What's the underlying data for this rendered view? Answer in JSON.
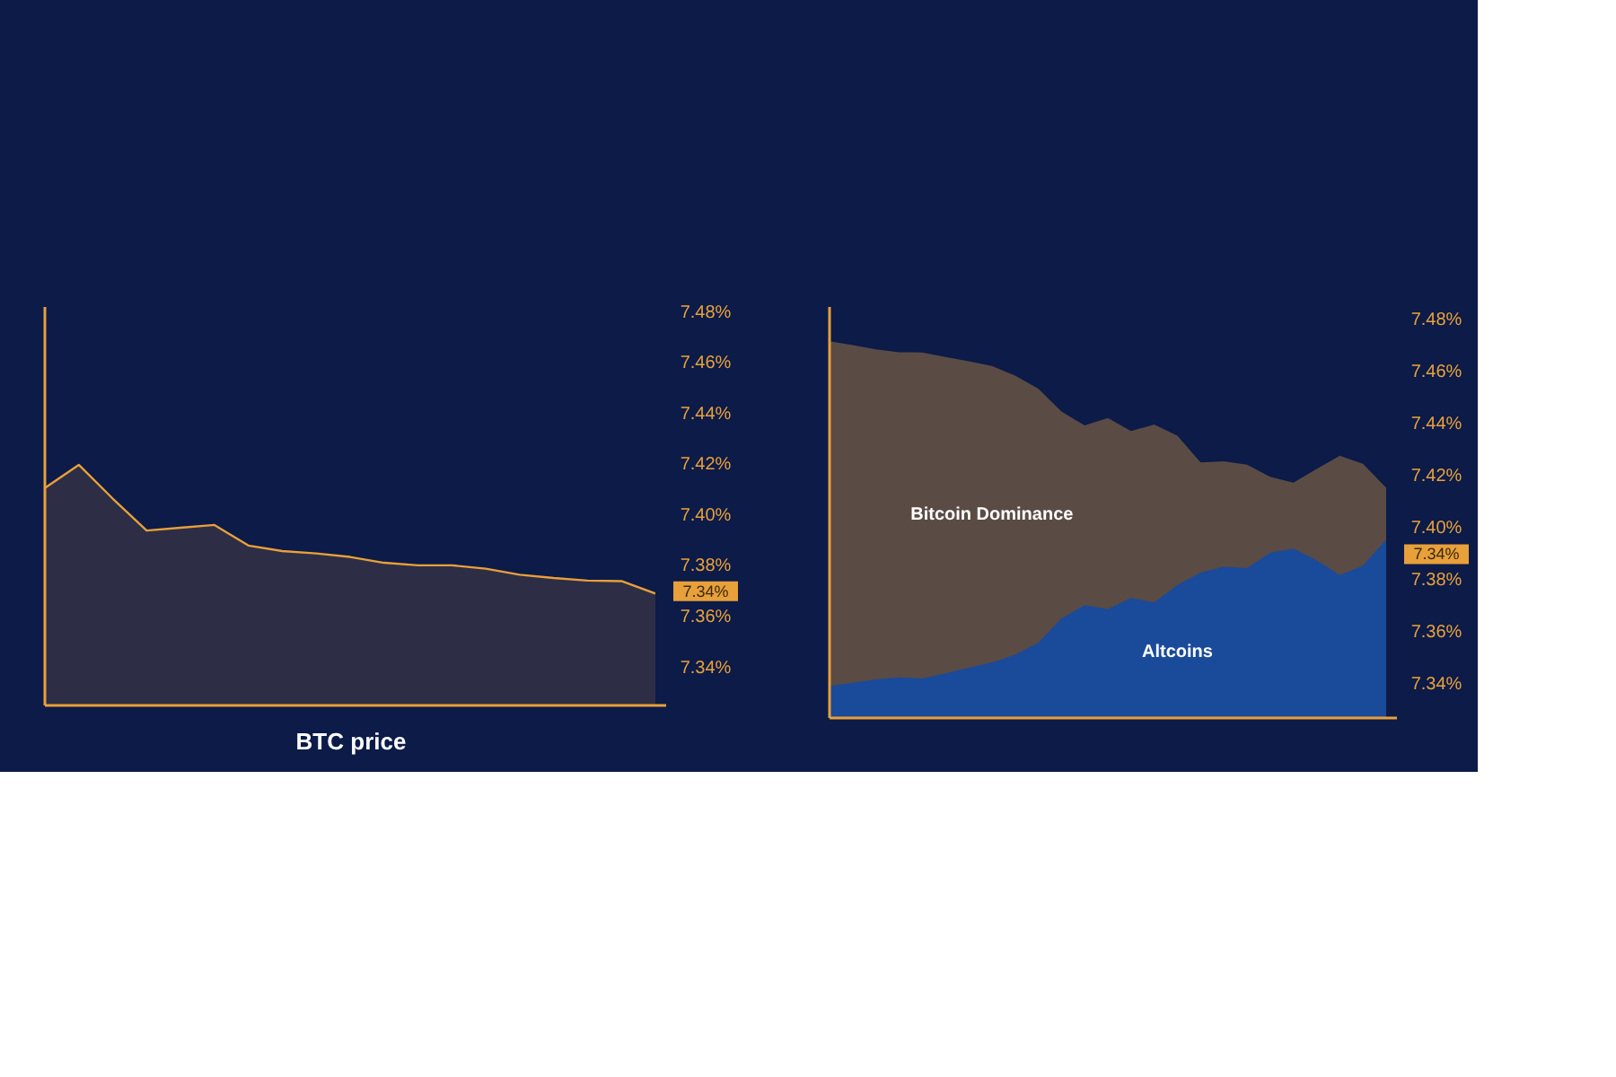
{
  "chart_data": [
    {
      "type": "area",
      "xlabel": "BTC price",
      "categories": [
        null,
        null,
        null,
        null,
        null,
        null,
        null,
        null,
        null,
        null,
        null,
        null,
        null,
        null,
        null,
        null,
        null,
        null,
        null
      ],
      "series": [
        {
          "color": "#e8a03a",
          "values": [
            7.4107,
            7.4198,
            7.4065,
            7.3939,
            7.395,
            7.3961,
            7.388,
            7.3858,
            7.3849,
            7.3835,
            7.3812,
            7.3802,
            7.3802,
            7.3789,
            7.3765,
            7.3752,
            7.3742,
            7.374,
            7.3691
          ]
        }
      ],
      "ylim": [
        7.325,
        7.482
      ],
      "yticks": [
        {
          "value": 7.34,
          "label": "7.34%"
        },
        {
          "value": 7.36,
          "label": "7.36%"
        },
        {
          "value": 7.38,
          "label": "7.38%"
        },
        {
          "value": 7.4,
          "label": "7.40%"
        },
        {
          "value": 7.42,
          "label": "7.42%"
        },
        {
          "value": 7.44,
          "label": "7.44%"
        },
        {
          "value": 7.46,
          "label": "7.46%"
        },
        {
          "value": 7.48,
          "label": "7.48%"
        }
      ],
      "annotations": [
        "7.34%"
      ],
      "tick_labels": "y",
      "grid": false
    },
    {
      "type": "area",
      "categories": [
        null,
        null,
        null,
        null,
        null,
        null,
        null,
        null,
        null,
        null,
        null,
        null,
        null,
        null,
        null,
        null,
        null,
        null,
        null,
        null,
        null,
        null,
        null,
        null,
        null
      ],
      "series": [
        {
          "name": "Bitcoin Dominance",
          "color": "#5a4b45",
          "values": [
            7.4718,
            7.4703,
            7.4687,
            7.4676,
            7.4675,
            7.4658,
            7.4641,
            7.4623,
            7.4586,
            7.4536,
            7.4448,
            7.4395,
            7.4423,
            7.4373,
            7.4398,
            7.4355,
            7.4252,
            7.4257,
            7.4244,
            7.4197,
            7.4175,
            7.4227,
            7.4278,
            7.4247,
            7.4155
          ]
        },
        {
          "name": "Altcoins",
          "color": "#1a4a9a",
          "values": [
            7.3393,
            7.3405,
            7.3418,
            7.3426,
            7.3422,
            7.3442,
            7.3463,
            7.3483,
            7.3513,
            7.3559,
            7.3653,
            7.3704,
            7.3688,
            7.3731,
            7.3714,
            7.3781,
            7.3829,
            7.3851,
            7.3846,
            7.3906,
            7.3921,
            7.3876,
            7.3819,
            7.3856,
            7.3956
          ]
        }
      ],
      "ylim": [
        7.327,
        7.485
      ],
      "yticks": [
        {
          "value": 7.34,
          "label": "7.34%"
        },
        {
          "value": 7.36,
          "label": "7.36%"
        },
        {
          "value": 7.38,
          "label": "7.38%"
        },
        {
          "value": 7.4,
          "label": "7.40%"
        },
        {
          "value": 7.42,
          "label": "7.42%"
        },
        {
          "value": 7.44,
          "label": "7.44%"
        },
        {
          "value": 7.46,
          "label": "7.46%"
        },
        {
          "value": 7.48,
          "label": "7.48%"
        }
      ],
      "annotations": [
        "7.34%"
      ],
      "tick_labels": "y",
      "grid": false
    }
  ]
}
